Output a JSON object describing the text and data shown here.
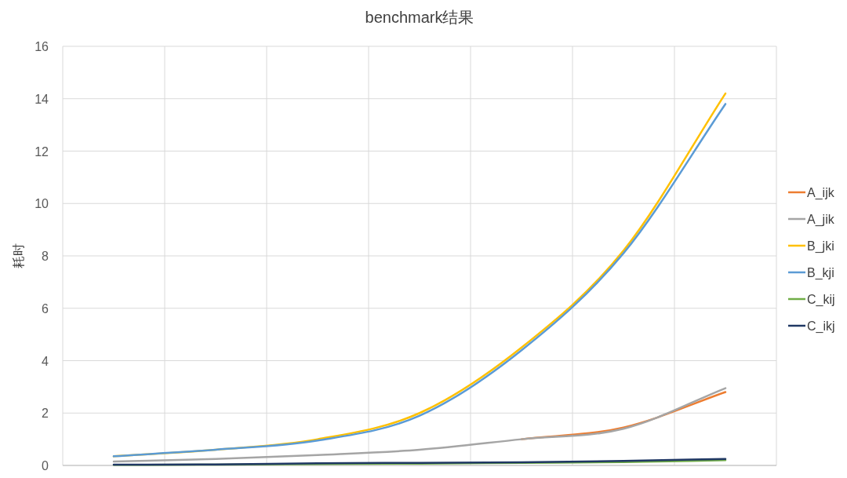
{
  "chart_data": {
    "type": "line",
    "title": "benchmark结果",
    "ylabel": "耗时",
    "categories": [
      null,
      null,
      null,
      null,
      null,
      null,
      null
    ],
    "ylim": [
      0,
      16
    ],
    "yticks": [
      0,
      2,
      4,
      6,
      8,
      10,
      12,
      14,
      16
    ],
    "grid": true,
    "legend": "right",
    "series": [
      {
        "name": "A_ijk",
        "color": "#ed7d31",
        "values": [
          null,
          null,
          null,
          null,
          1.0,
          1.45,
          2.8
        ]
      },
      {
        "name": "A_jik",
        "color": "#a5a5a5",
        "values": [
          0.15,
          0.25,
          0.4,
          0.6,
          1.0,
          1.4,
          2.95
        ]
      },
      {
        "name": "B_jki",
        "color": "#ffc000",
        "values": [
          0.35,
          0.6,
          1.0,
          2.0,
          4.5,
          8.2,
          14.2
        ]
      },
      {
        "name": "B_kji",
        "color": "#5b9bd5",
        "values": [
          0.35,
          0.6,
          0.95,
          1.9,
          4.4,
          8.1,
          13.8
        ]
      },
      {
        "name": "C_kij",
        "color": "#70ad47",
        "values": [
          0.02,
          0.03,
          0.05,
          0.07,
          0.1,
          0.13,
          0.2
        ]
      },
      {
        "name": "C_ikj",
        "color": "#203864",
        "values": [
          0.03,
          0.04,
          0.08,
          0.1,
          0.12,
          0.17,
          0.25
        ]
      }
    ]
  }
}
